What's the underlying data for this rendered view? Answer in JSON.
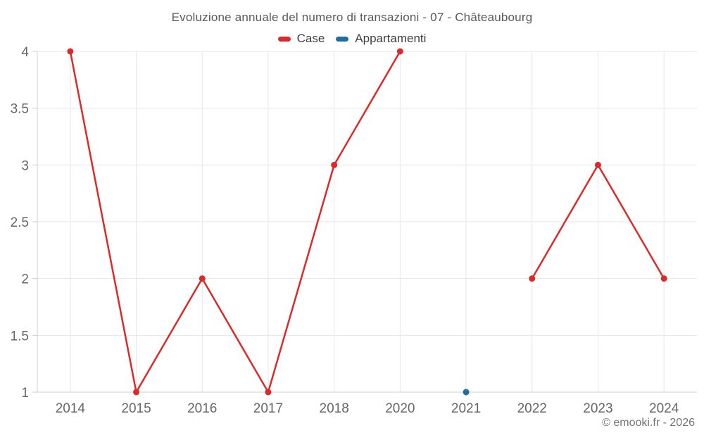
{
  "title": "Evoluzione annuale del numero di transazioni - 07 - Châteaubourg",
  "credits": "© emooki.fr - 2026",
  "theme": {
    "background": "#ffffff",
    "grid_color": "#e7e7e7",
    "axis_line_color": "#d2d2d2",
    "tick_color": "#cccccc",
    "title_color": "#58595b",
    "axis_label_color": "#666666",
    "legend_text_color": "#3f3f3f",
    "credits_color": "#747474",
    "case_color": "#dc2a2a",
    "appartamenti_color": "#1c6ea4"
  },
  "chart_data": {
    "type": "line",
    "title": "Evoluzione annuale del numero di transazioni - 07 - Châteaubourg",
    "xlabel": "",
    "ylabel": "",
    "categories": [
      "2014",
      "2015",
      "2016",
      "2017",
      "2018",
      "2020",
      "2021",
      "2022",
      "2023",
      "2024"
    ],
    "series": [
      {
        "name": "Case",
        "color": "#dc2a2a",
        "values": [
          4,
          1,
          2,
          1,
          3,
          4,
          null,
          2,
          3,
          2
        ]
      },
      {
        "name": "Appartamenti",
        "color": "#1c6ea4",
        "values": [
          null,
          null,
          null,
          null,
          null,
          null,
          1,
          null,
          null,
          null
        ]
      }
    ],
    "ylim": [
      1,
      4
    ],
    "yticks": [
      1,
      1.5,
      2,
      2.5,
      3,
      3.5,
      4
    ],
    "grid": true,
    "legend_position": "top",
    "marker": "circle",
    "gap_note": "Case series has no value for 2021; Appartamenti only has a single point at 2021 = 1"
  }
}
